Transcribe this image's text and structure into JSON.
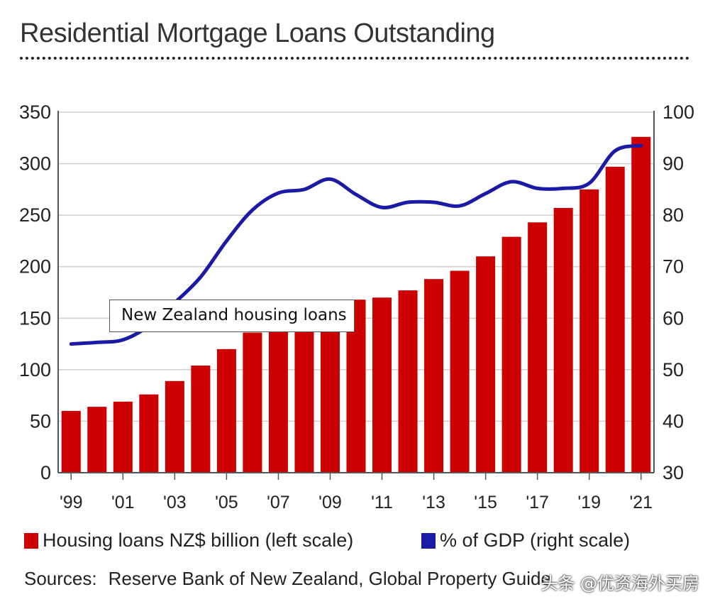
{
  "chart_data": {
    "type": "bar",
    "title": "Residential Mortgage Loans Outstanding",
    "x": [
      1999,
      2000,
      2001,
      2002,
      2003,
      2004,
      2005,
      2006,
      2007,
      2008,
      2009,
      2010,
      2011,
      2012,
      2013,
      2014,
      2015,
      2016,
      2017,
      2018,
      2019,
      2020,
      2021
    ],
    "x_tick_labels": [
      {
        "x": 1999,
        "label": "'99"
      },
      {
        "x": 2001,
        "label": "'01"
      },
      {
        "x": 2003,
        "label": "'03"
      },
      {
        "x": 2005,
        "label": "'05"
      },
      {
        "x": 2007,
        "label": "'07"
      },
      {
        "x": 2009,
        "label": "'09"
      },
      {
        "x": 2011,
        "label": "'11"
      },
      {
        "x": 2013,
        "label": "'13"
      },
      {
        "x": 2015,
        "label": "'15"
      },
      {
        "x": 2017,
        "label": "'17"
      },
      {
        "x": 2019,
        "label": "'19"
      },
      {
        "x": 2021,
        "label": "'21"
      }
    ],
    "series": [
      {
        "name": "Housing loans NZ$ billion (left scale)",
        "type": "bar",
        "axis": "left",
        "color": "#cc0000",
        "values": [
          60,
          64,
          69,
          76,
          89,
          104,
          120,
          136,
          138,
          140,
          165,
          168,
          170,
          177,
          188,
          196,
          210,
          229,
          243,
          257,
          275,
          297,
          326
        ]
      },
      {
        "name": "% of GDP (right scale)",
        "type": "line",
        "axis": "right",
        "color": "#1a1aa6",
        "values": [
          55,
          55.3,
          55.8,
          58.5,
          63,
          68,
          75,
          81,
          84.3,
          85,
          87,
          84,
          81.5,
          82.5,
          82.5,
          81.8,
          84.2,
          86.5,
          85.2,
          85.2,
          86.2,
          92.5,
          93.5
        ]
      }
    ],
    "y_left": {
      "min": 0,
      "max": 350,
      "ticks": [
        0,
        50,
        100,
        150,
        200,
        250,
        300,
        350
      ]
    },
    "y_right": {
      "min": 30,
      "max": 100,
      "ticks": [
        30,
        40,
        50,
        60,
        70,
        80,
        90,
        100
      ]
    },
    "grid": true,
    "legend_position": "bottom",
    "annotation": "New Zealand housing loans"
  },
  "sources": {
    "label": "Sources:",
    "text": "Reserve Bank of New Zealand, Global Property Guide"
  },
  "watermark": "头条 @优资海外买房"
}
